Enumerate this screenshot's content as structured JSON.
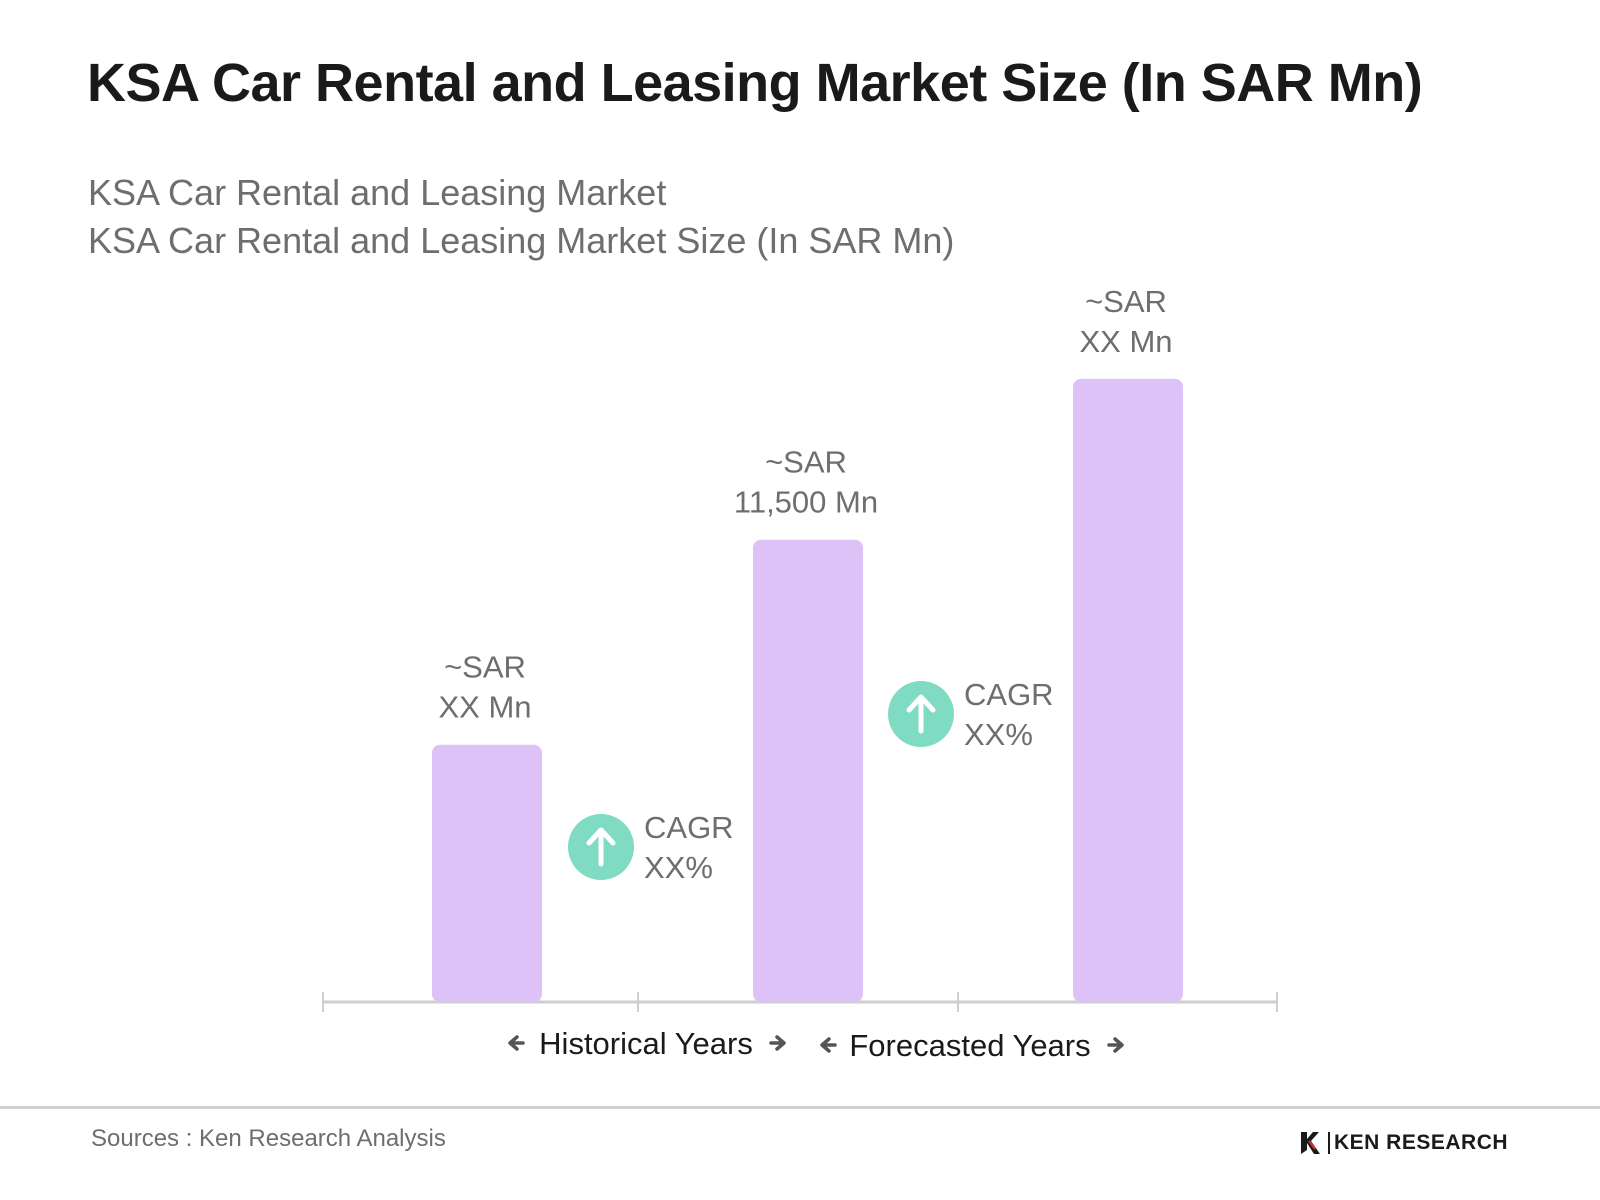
{
  "chart_data": {
    "type": "bar",
    "title": "KSA Car Rental and Leasing Market Size (In SAR Mn)",
    "subtitle_lines": [
      "KSA Car Rental and Leasing Market",
      "KSA Car Rental and Leasing Market Size (In SAR Mn)"
    ],
    "bar_color": "#dcc2f6",
    "accent_color": "#7fdcc3",
    "bars": [
      {
        "label_line1": "~SAR",
        "label_line2": "XX Mn",
        "value": 6400
      },
      {
        "label_line1": "~SAR",
        "label_line2": "11,500 Mn",
        "value": 11500
      },
      {
        "label_line1": "~SAR",
        "label_line2": "XX Mn",
        "value": 15500
      }
    ],
    "cagr_badges": [
      {
        "line1": "CAGR",
        "line2": "XX%",
        "icon": "arrow-up-icon"
      },
      {
        "line1": "CAGR",
        "line2": "XX%",
        "icon": "arrow-up-icon"
      }
    ],
    "periods": [
      "Historical Years",
      "Forecasted Years"
    ]
  },
  "footer": {
    "source": "Sources : Ken Research Analysis",
    "logo_text": "KEN RESEARCH",
    "logo_icon": "ken-research-logo-icon"
  }
}
